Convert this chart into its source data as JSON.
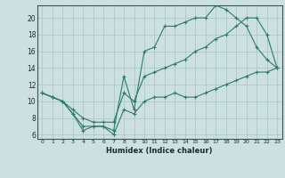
{
  "xlabel": "Humidex (Indice chaleur)",
  "bg_color": "#cde0e0",
  "grid_color": "#adc8c8",
  "line_color": "#2d7a6e",
  "xlim": [
    -0.5,
    23.5
  ],
  "ylim": [
    5.5,
    21.5
  ],
  "yticks": [
    6,
    8,
    10,
    12,
    14,
    16,
    18,
    20
  ],
  "xticks": [
    0,
    1,
    2,
    3,
    4,
    5,
    6,
    7,
    8,
    9,
    10,
    11,
    12,
    13,
    14,
    15,
    16,
    17,
    18,
    19,
    20,
    21,
    22,
    23
  ],
  "line1_x": [
    0,
    1,
    2,
    3,
    4,
    5,
    6,
    7,
    8,
    9,
    10,
    11,
    12,
    13,
    14,
    15,
    16,
    17,
    18,
    19,
    20,
    21,
    22,
    23
  ],
  "line1_y": [
    11,
    10.5,
    10,
    8.5,
    6.5,
    7.0,
    7.0,
    6.0,
    9.0,
    8.5,
    10.0,
    10.5,
    10.5,
    11.0,
    10.5,
    10.5,
    11.0,
    11.5,
    12.0,
    12.5,
    13.0,
    13.5,
    13.5,
    14.0
  ],
  "line2_x": [
    0,
    1,
    2,
    3,
    4,
    5,
    6,
    7,
    8,
    9,
    10,
    11,
    12,
    13,
    14,
    15,
    16,
    17,
    18,
    19,
    20,
    21,
    22,
    23
  ],
  "line2_y": [
    11,
    10.5,
    10,
    8.5,
    7.0,
    7.0,
    7.0,
    6.5,
    13.0,
    9.0,
    16.0,
    16.5,
    19.0,
    19.0,
    19.5,
    20.0,
    20.0,
    21.5,
    21.0,
    20.0,
    19.0,
    16.5,
    15.0,
    14.0
  ],
  "line3_x": [
    0,
    1,
    2,
    3,
    4,
    5,
    6,
    7,
    8,
    9,
    10,
    11,
    12,
    13,
    14,
    15,
    16,
    17,
    18,
    19,
    20,
    21,
    22,
    23
  ],
  "line3_y": [
    11,
    10.5,
    10,
    9.0,
    8.0,
    7.5,
    7.5,
    7.5,
    11.0,
    10.0,
    13.0,
    13.5,
    14.0,
    14.5,
    15.0,
    16.0,
    16.5,
    17.5,
    18.0,
    19.0,
    20.0,
    20.0,
    18.0,
    14.0
  ]
}
